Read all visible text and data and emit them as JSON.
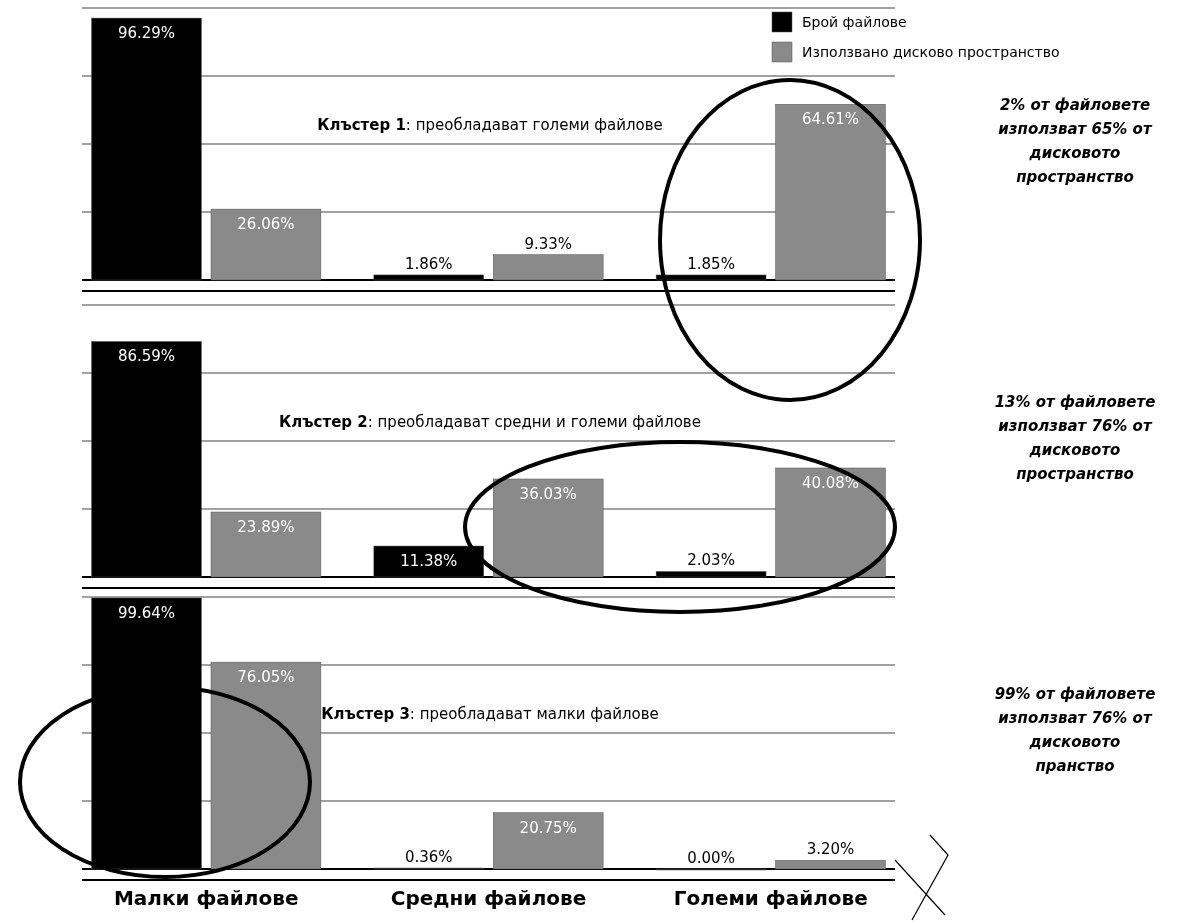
{
  "chart_data": [
    {
      "type": "bar",
      "title": "Клъстер 1: преобладават големи файлове",
      "categories": [
        null,
        null,
        null
      ],
      "series": [
        {
          "name": "Брой файлове",
          "color": "#000000",
          "values": [
            96.29,
            1.86,
            1.85
          ],
          "value_labels": [
            "96.29%",
            "1.86%",
            "1.85%"
          ]
        },
        {
          "name": "Използвано дисково пространство",
          "color": "#8a8a8a",
          "values": [
            26.06,
            9.33,
            64.61
          ],
          "value_labels": [
            "26.06%",
            "9.33%",
            "64.61%"
          ]
        }
      ],
      "ylim": [
        0,
        100
      ],
      "yticks": [
        {
          "value": 0,
          "label": null
        },
        {
          "value": 25,
          "label": null
        },
        {
          "value": 50,
          "label": null
        },
        {
          "value": 75,
          "label": null
        },
        {
          "value": 100,
          "label": null
        }
      ],
      "grid": "y",
      "tick_labels": false,
      "legend": "top right",
      "annotations": [
        "2% от файловете използват 65% от дисковото пространство"
      ]
    },
    {
      "type": "bar",
      "title": "Клъстер 2: преобладават средни и големи файлове",
      "categories": [
        null,
        null,
        null
      ],
      "series": [
        {
          "color": "#000000",
          "values": [
            86.59,
            11.38,
            2.03
          ],
          "value_labels": [
            "86.59%",
            "11.38%",
            "2.03%"
          ]
        },
        {
          "color": "#8a8a8a",
          "values": [
            23.89,
            36.03,
            40.08
          ],
          "value_labels": [
            "23.89%",
            "36.03%",
            "40.08%"
          ]
        }
      ],
      "ylim": [
        0,
        100
      ],
      "yticks": [
        {
          "value": 0,
          "label": null
        },
        {
          "value": 25,
          "label": null
        },
        {
          "value": 50,
          "label": null
        },
        {
          "value": 75,
          "label": null
        },
        {
          "value": 100,
          "label": null
        }
      ],
      "grid": "y",
      "tick_labels": false,
      "annotations": [
        "13% от файловете използват 76% от дисковото пространство"
      ]
    },
    {
      "type": "bar",
      "title": "Клъстер 3: преобладават малки файлове",
      "categories": [
        "Малки файлове",
        "Средни файлове",
        "Големи файлове"
      ],
      "series": [
        {
          "color": "#000000",
          "values": [
            99.64,
            0.36,
            0
          ],
          "value_labels": [
            "99.64%",
            "0.36%",
            "0.00%"
          ]
        },
        {
          "color": "#8a8a8a",
          "values": [
            76.05,
            20.75,
            3.2
          ],
          "value_labels": [
            "76.05%",
            "20.75%",
            "3.20%"
          ]
        }
      ],
      "ylim": [
        0,
        100
      ],
      "yticks": [
        {
          "value": 0,
          "label": null
        },
        {
          "value": 25,
          "label": null
        },
        {
          "value": 50,
          "label": null
        },
        {
          "value": 75,
          "label": null
        },
        {
          "value": 100,
          "label": null
        }
      ],
      "grid": "y",
      "tick_labels": "x",
      "annotations": [
        "99% от файловете използват 76% от дисковото пранство"
      ]
    }
  ]
}
